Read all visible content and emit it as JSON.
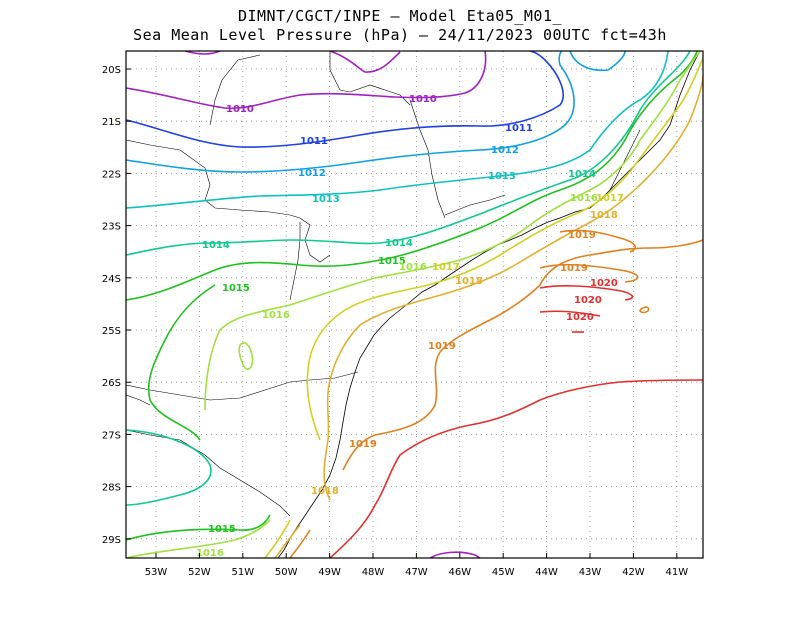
{
  "title": {
    "line1": "DIMNT/CGCT/INPE –  Model Eta05_M01_",
    "line2": "Sea Mean Level Pressure (hPa) – 24/11/2023 00UTC fct=43h"
  },
  "axes": {
    "lat_labels": [
      "20S",
      "21S",
      "22S",
      "23S",
      "24S",
      "25S",
      "26S",
      "27S",
      "28S",
      "29S"
    ],
    "lon_labels": [
      "53W",
      "52W",
      "51W",
      "50W",
      "49W",
      "48W",
      "47W",
      "46W",
      "45W",
      "44W",
      "43W",
      "42W",
      "41W"
    ]
  },
  "contour_levels": [
    {
      "value": "1010",
      "color": "#a020c0"
    },
    {
      "value": "1011",
      "color": "#2040e0"
    },
    {
      "value": "1012",
      "color": "#10a0e0"
    },
    {
      "value": "1013",
      "color": "#10c0c0"
    },
    {
      "value": "1014",
      "color": "#10c890"
    },
    {
      "value": "1015",
      "color": "#20c020"
    },
    {
      "value": "1016",
      "color": "#a0e040"
    },
    {
      "value": "1017",
      "color": "#d0d020"
    },
    {
      "value": "1018",
      "color": "#e0b030"
    },
    {
      "value": "1019",
      "color": "#e08020"
    },
    {
      "value": "1020",
      "color": "#e03030"
    }
  ],
  "contour_labels": [
    {
      "text": "1010",
      "level": "1010"
    },
    {
      "text": "1010",
      "level": "1010"
    },
    {
      "text": "1011",
      "level": "1011"
    },
    {
      "text": "1011",
      "level": "1011"
    },
    {
      "text": "1012",
      "level": "1012"
    },
    {
      "text": "1012",
      "level": "1012"
    },
    {
      "text": "1013",
      "level": "1013"
    },
    {
      "text": "1013",
      "level": "1013"
    },
    {
      "text": "1014",
      "level": "1014"
    },
    {
      "text": "1014",
      "level": "1014"
    },
    {
      "text": "1014",
      "level": "1014"
    },
    {
      "text": "1015",
      "level": "1015"
    },
    {
      "text": "1015",
      "level": "1015"
    },
    {
      "text": "1015",
      "level": "1015"
    },
    {
      "text": "1016",
      "level": "1016"
    },
    {
      "text": "1016",
      "level": "1016"
    },
    {
      "text": "1016",
      "level": "1016"
    },
    {
      "text": "1016",
      "level": "1016"
    },
    {
      "text": "1017",
      "level": "1017"
    },
    {
      "text": "1017",
      "level": "1017"
    },
    {
      "text": "1018",
      "level": "1018"
    },
    {
      "text": "1018",
      "level": "1018"
    },
    {
      "text": "1018",
      "level": "1018"
    },
    {
      "text": "1019",
      "level": "1019"
    },
    {
      "text": "1019",
      "level": "1019"
    },
    {
      "text": "1019",
      "level": "1019"
    },
    {
      "text": "1019",
      "level": "1019"
    },
    {
      "text": "1020",
      "level": "1020"
    },
    {
      "text": "1020",
      "level": "1020"
    },
    {
      "text": "1020",
      "level": "1020"
    }
  ]
}
